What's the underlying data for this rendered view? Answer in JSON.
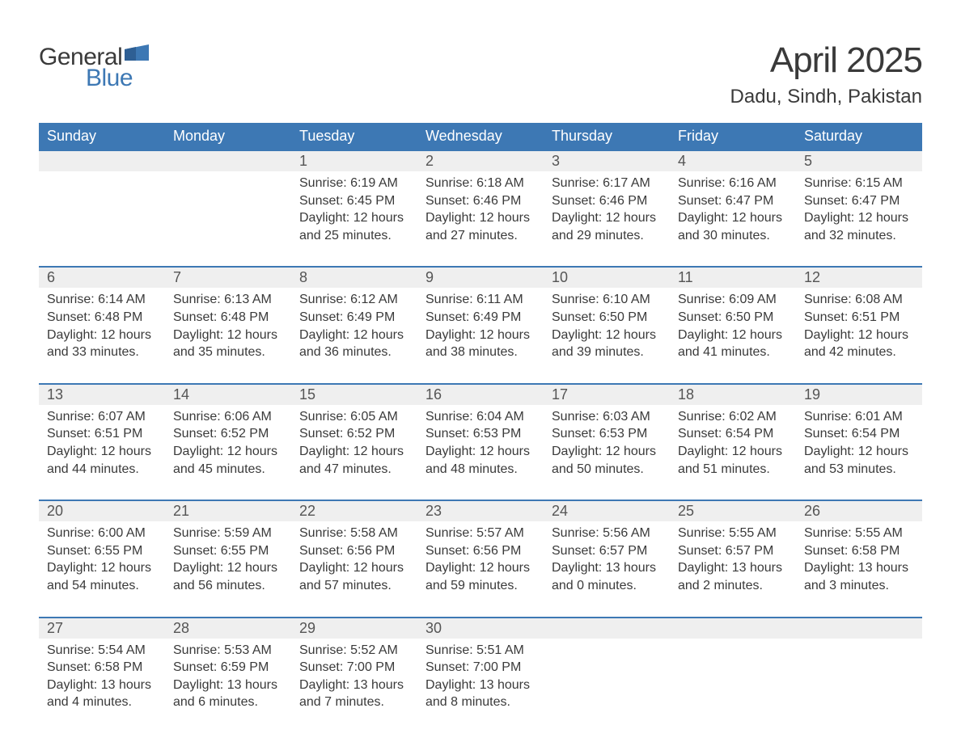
{
  "logo": {
    "word1": "General",
    "word2": "Blue",
    "flag_color": "#3d78b4"
  },
  "title": "April 2025",
  "location": "Dadu, Sindh, Pakistan",
  "colors": {
    "header_bg": "#3d78b4",
    "header_text": "#ffffff",
    "daynum_bg": "#efefef",
    "border_top": "#3d78b4",
    "text": "#3a3a3a"
  },
  "day_headers": [
    "Sunday",
    "Monday",
    "Tuesday",
    "Wednesday",
    "Thursday",
    "Friday",
    "Saturday"
  ],
  "weeks": [
    [
      null,
      null,
      {
        "n": "1",
        "sunrise": "6:19 AM",
        "sunset": "6:45 PM",
        "d_h": "12",
        "d_m": "25"
      },
      {
        "n": "2",
        "sunrise": "6:18 AM",
        "sunset": "6:46 PM",
        "d_h": "12",
        "d_m": "27"
      },
      {
        "n": "3",
        "sunrise": "6:17 AM",
        "sunset": "6:46 PM",
        "d_h": "12",
        "d_m": "29"
      },
      {
        "n": "4",
        "sunrise": "6:16 AM",
        "sunset": "6:47 PM",
        "d_h": "12",
        "d_m": "30"
      },
      {
        "n": "5",
        "sunrise": "6:15 AM",
        "sunset": "6:47 PM",
        "d_h": "12",
        "d_m": "32"
      }
    ],
    [
      {
        "n": "6",
        "sunrise": "6:14 AM",
        "sunset": "6:48 PM",
        "d_h": "12",
        "d_m": "33"
      },
      {
        "n": "7",
        "sunrise": "6:13 AM",
        "sunset": "6:48 PM",
        "d_h": "12",
        "d_m": "35"
      },
      {
        "n": "8",
        "sunrise": "6:12 AM",
        "sunset": "6:49 PM",
        "d_h": "12",
        "d_m": "36"
      },
      {
        "n": "9",
        "sunrise": "6:11 AM",
        "sunset": "6:49 PM",
        "d_h": "12",
        "d_m": "38"
      },
      {
        "n": "10",
        "sunrise": "6:10 AM",
        "sunset": "6:50 PM",
        "d_h": "12",
        "d_m": "39"
      },
      {
        "n": "11",
        "sunrise": "6:09 AM",
        "sunset": "6:50 PM",
        "d_h": "12",
        "d_m": "41"
      },
      {
        "n": "12",
        "sunrise": "6:08 AM",
        "sunset": "6:51 PM",
        "d_h": "12",
        "d_m": "42"
      }
    ],
    [
      {
        "n": "13",
        "sunrise": "6:07 AM",
        "sunset": "6:51 PM",
        "d_h": "12",
        "d_m": "44"
      },
      {
        "n": "14",
        "sunrise": "6:06 AM",
        "sunset": "6:52 PM",
        "d_h": "12",
        "d_m": "45"
      },
      {
        "n": "15",
        "sunrise": "6:05 AM",
        "sunset": "6:52 PM",
        "d_h": "12",
        "d_m": "47"
      },
      {
        "n": "16",
        "sunrise": "6:04 AM",
        "sunset": "6:53 PM",
        "d_h": "12",
        "d_m": "48"
      },
      {
        "n": "17",
        "sunrise": "6:03 AM",
        "sunset": "6:53 PM",
        "d_h": "12",
        "d_m": "50"
      },
      {
        "n": "18",
        "sunrise": "6:02 AM",
        "sunset": "6:54 PM",
        "d_h": "12",
        "d_m": "51"
      },
      {
        "n": "19",
        "sunrise": "6:01 AM",
        "sunset": "6:54 PM",
        "d_h": "12",
        "d_m": "53"
      }
    ],
    [
      {
        "n": "20",
        "sunrise": "6:00 AM",
        "sunset": "6:55 PM",
        "d_h": "12",
        "d_m": "54"
      },
      {
        "n": "21",
        "sunrise": "5:59 AM",
        "sunset": "6:55 PM",
        "d_h": "12",
        "d_m": "56"
      },
      {
        "n": "22",
        "sunrise": "5:58 AM",
        "sunset": "6:56 PM",
        "d_h": "12",
        "d_m": "57"
      },
      {
        "n": "23",
        "sunrise": "5:57 AM",
        "sunset": "6:56 PM",
        "d_h": "12",
        "d_m": "59"
      },
      {
        "n": "24",
        "sunrise": "5:56 AM",
        "sunset": "6:57 PM",
        "d_h": "13",
        "d_m": "0"
      },
      {
        "n": "25",
        "sunrise": "5:55 AM",
        "sunset": "6:57 PM",
        "d_h": "13",
        "d_m": "2"
      },
      {
        "n": "26",
        "sunrise": "5:55 AM",
        "sunset": "6:58 PM",
        "d_h": "13",
        "d_m": "3"
      }
    ],
    [
      {
        "n": "27",
        "sunrise": "5:54 AM",
        "sunset": "6:58 PM",
        "d_h": "13",
        "d_m": "4"
      },
      {
        "n": "28",
        "sunrise": "5:53 AM",
        "sunset": "6:59 PM",
        "d_h": "13",
        "d_m": "6"
      },
      {
        "n": "29",
        "sunrise": "5:52 AM",
        "sunset": "7:00 PM",
        "d_h": "13",
        "d_m": "7"
      },
      {
        "n": "30",
        "sunrise": "5:51 AM",
        "sunset": "7:00 PM",
        "d_h": "13",
        "d_m": "8"
      },
      null,
      null,
      null
    ]
  ],
  "labels": {
    "sunrise": "Sunrise: ",
    "sunset": "Sunset: ",
    "daylight_prefix": "Daylight: ",
    "hours_word": " hours",
    "and_word": "and ",
    "minutes_word": " minutes."
  }
}
